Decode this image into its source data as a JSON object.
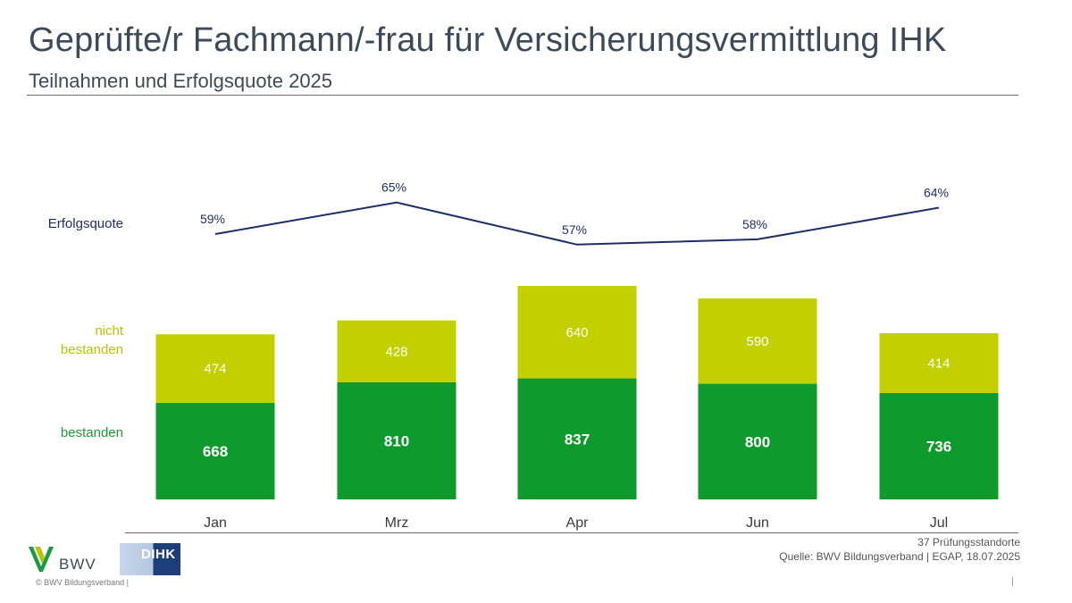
{
  "header": {
    "title": "Geprüfte/r Fachmann/-frau für Versicherungsvermittlung IHK",
    "subtitle": "Teilnahmen und Erfolgsquote 2025"
  },
  "legend": {
    "quote_label": "Erfolgsquote",
    "fail_label_line1": "nicht",
    "fail_label_line2": "bestanden",
    "pass_label": "bestanden"
  },
  "colors": {
    "passed": "#0f9a2d",
    "failed": "#c3d000",
    "quote_line": "#1d2f66"
  },
  "chart_data": {
    "type": "bar",
    "stacked": true,
    "categories": [
      "Jan",
      "Mrz",
      "Apr",
      "Jun",
      "Jul"
    ],
    "series": [
      {
        "name": "bestanden",
        "values": [
          668,
          810,
          837,
          800,
          736
        ]
      },
      {
        "name": "nicht bestanden",
        "values": [
          474,
          428,
          640,
          590,
          414
        ]
      }
    ],
    "line_series": {
      "name": "Erfolgsquote",
      "values": [
        59,
        65,
        57,
        58,
        64
      ],
      "labels": [
        "59%",
        "65%",
        "57%",
        "58%",
        "64%"
      ]
    }
  },
  "footer": {
    "note": "37 Prüfungsstandorte",
    "source": "Quelle: BWV Bildungsverband | EGAP, 18.07.2025",
    "copyright": "© BWV Bildungsverband |",
    "page_marker": "|"
  },
  "logos": {
    "bwv_text": "BWV",
    "dihk_text": "DIHK"
  }
}
